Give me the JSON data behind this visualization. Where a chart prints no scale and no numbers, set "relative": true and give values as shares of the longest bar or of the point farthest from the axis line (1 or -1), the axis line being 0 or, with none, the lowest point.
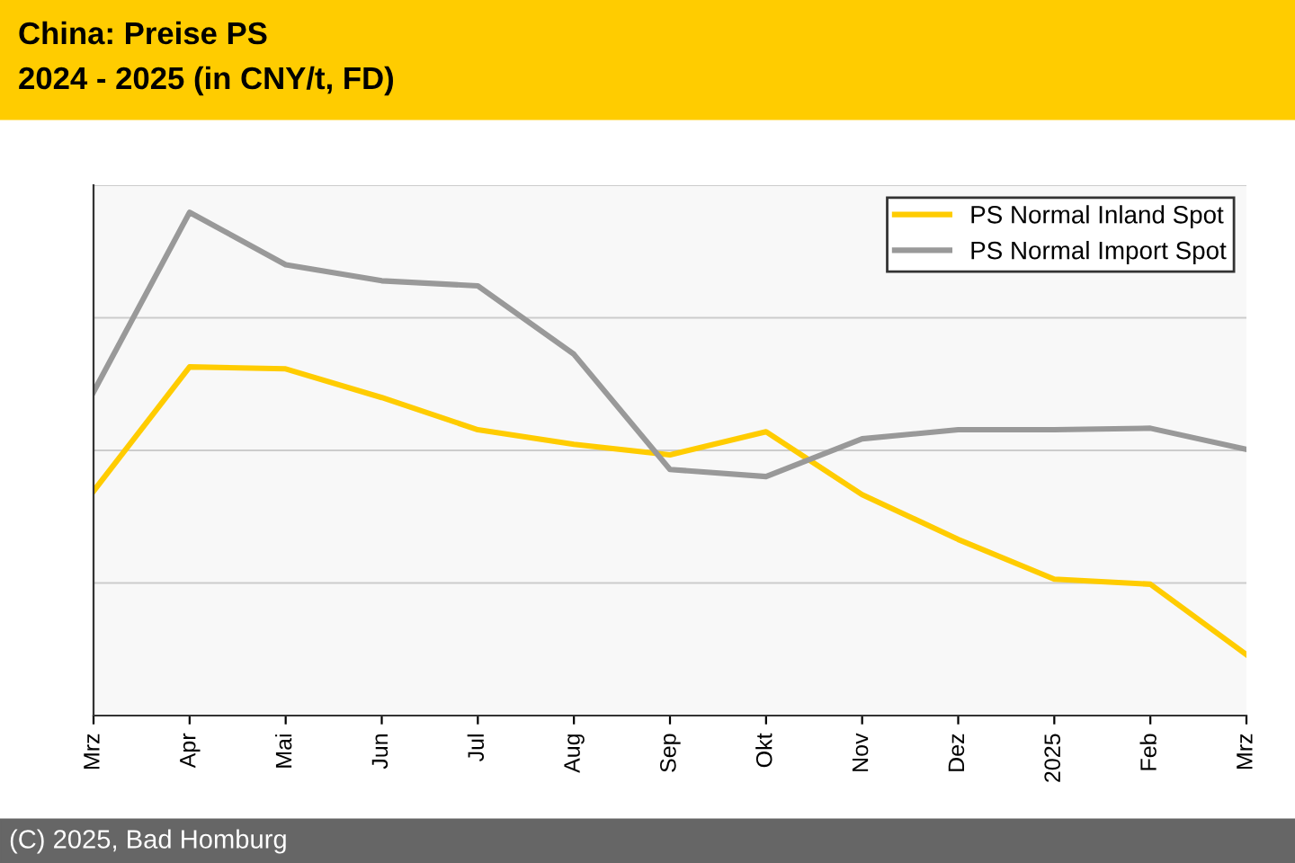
{
  "chart_data": {
    "type": "line",
    "title": "China: Preise PS",
    "subtitle": "2024 - 2025 (in CNY/t, FD)",
    "categories": [
      "Mrz",
      "Apr",
      "Mai",
      "Jun",
      "Jul",
      "Aug",
      "Sep",
      "Okt",
      "Nov",
      "Dez",
      "2025",
      "Feb",
      "Mrz"
    ],
    "relative": true,
    "grid": "y",
    "legend": "top right",
    "marker": "none",
    "line_style": "solid",
    "series": [
      {
        "name": "PS Normal Inland Spot",
        "color": "#ffcc00",
        "values": [
          0.446,
          0.693,
          0.689,
          0.632,
          0.568,
          0.539,
          0.518,
          0.564,
          0.439,
          0.35,
          0.271,
          0.261,
          0.121
        ]
      },
      {
        "name": "PS Normal Import Spot",
        "color": "#999999",
        "values": [
          0.643,
          1,
          0.896,
          0.864,
          0.854,
          0.718,
          0.489,
          0.475,
          0.55,
          0.568,
          0.568,
          0.571,
          0.529
        ]
      }
    ],
    "annotations": [
      "(C) 2025, Bad Homburg"
    ]
  }
}
